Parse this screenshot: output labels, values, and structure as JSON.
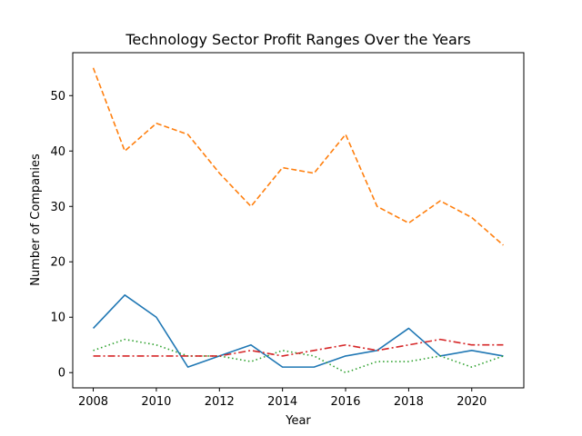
{
  "chart_data": {
    "type": "line",
    "title": "Technology Sector Profit Ranges Over the Years",
    "xlabel": "Year",
    "ylabel": "Number of Companies",
    "x": [
      2008,
      2009,
      2010,
      2011,
      2012,
      2013,
      2014,
      2015,
      2016,
      2017,
      2018,
      2019,
      2020,
      2021
    ],
    "xlim": [
      2007.35,
      2021.65
    ],
    "ylim": [
      -2.75,
      57.75
    ],
    "xticks": [
      2008,
      2010,
      2012,
      2014,
      2016,
      2018,
      2020
    ],
    "yticks": [
      0,
      10,
      20,
      30,
      40,
      50
    ],
    "grid": false,
    "legend": "none",
    "series": [
      {
        "color": "#1f77b4",
        "dash": "solid",
        "values": [
          8,
          14,
          10,
          1,
          3,
          5,
          1,
          1,
          3,
          4,
          8,
          3,
          4,
          3
        ]
      },
      {
        "color": "#ff7f0e",
        "dash": "dashed",
        "values": [
          55,
          40,
          45,
          43,
          36,
          30,
          37,
          36,
          43,
          30,
          27,
          31,
          28,
          23
        ]
      },
      {
        "color": "#2ca02c",
        "dash": "dotted",
        "values": [
          4,
          6,
          5,
          3,
          3,
          2,
          4,
          3,
          0,
          2,
          2,
          3,
          1,
          3
        ]
      },
      {
        "color": "#d62728",
        "dash": "dashdot",
        "values": [
          3,
          3,
          3,
          3,
          3,
          4,
          3,
          4,
          5,
          4,
          5,
          6,
          5,
          5
        ]
      }
    ]
  }
}
